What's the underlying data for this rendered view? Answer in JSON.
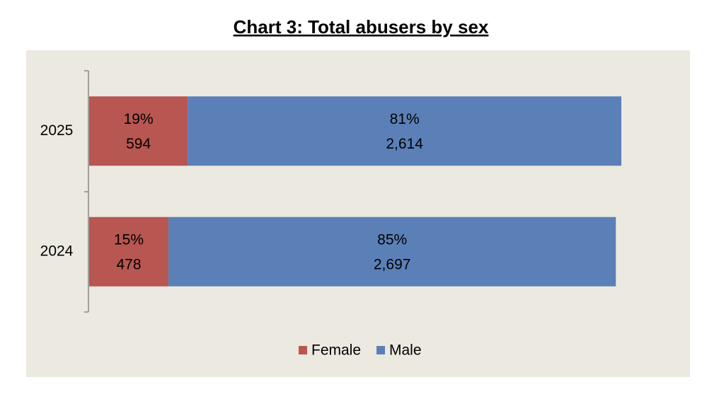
{
  "chart_data": {
    "type": "stacked-bar-horizontal",
    "title": "Chart 3: Total abusers by sex",
    "categories": [
      "2025",
      "2024"
    ],
    "series": [
      {
        "name": "Female",
        "color": "#b85651",
        "values": [
          594,
          478
        ],
        "value_labels": [
          "594",
          "478"
        ],
        "percents": [
          19,
          15
        ],
        "percent_labels": [
          "19%",
          "15%"
        ]
      },
      {
        "name": "Male",
        "color": "#5b80b7",
        "values": [
          2614,
          2697
        ],
        "value_labels": [
          "2,614",
          "2,697"
        ],
        "percents": [
          81,
          85
        ],
        "percent_labels": [
          "81%",
          "85%"
        ]
      }
    ],
    "legend": "bottom"
  }
}
